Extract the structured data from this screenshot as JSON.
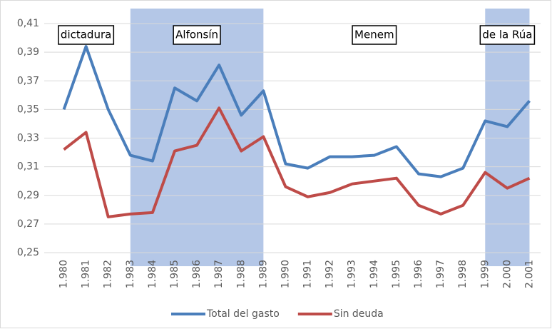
{
  "chart_data": {
    "type": "line",
    "categories": [
      "1.980",
      "1.981",
      "1.982",
      "1.983",
      "1.984",
      "1.985",
      "1.986",
      "1.987",
      "1.988",
      "1.989",
      "1.990",
      "1.991",
      "1.992",
      "1.993",
      "1.994",
      "1.995",
      "1.996",
      "1.997",
      "1.998",
      "1.999",
      "2.000",
      "2.001"
    ],
    "series": [
      {
        "name": "Total del gasto",
        "color": "#4a7ebb",
        "values": [
          0.35,
          0.394,
          0.35,
          0.318,
          0.314,
          0.365,
          0.356,
          0.381,
          0.346,
          0.363,
          0.312,
          0.309,
          0.317,
          0.317,
          0.318,
          0.324,
          0.305,
          0.303,
          0.309,
          0.342,
          0.338,
          0.356
        ]
      },
      {
        "name": "Sin deuda",
        "color": "#be4b48",
        "values": [
          0.322,
          0.334,
          0.275,
          0.277,
          0.278,
          0.321,
          0.325,
          0.351,
          0.321,
          0.331,
          0.296,
          0.289,
          0.292,
          0.298,
          0.3,
          0.302,
          0.283,
          0.277,
          0.283,
          0.306,
          0.295,
          0.302
        ]
      }
    ],
    "periods": [
      {
        "label": "dictadura",
        "start": "1.980",
        "end": "1.982",
        "shaded": false
      },
      {
        "label": "Alfonsín",
        "start": "1.983",
        "end": "1.989",
        "shaded": true
      },
      {
        "label": "Menem",
        "start": "1.990",
        "end": "1.998",
        "shaded": false
      },
      {
        "label": "de la Rúa",
        "start": "1.999",
        "end": "2.001",
        "shaded": true
      }
    ],
    "ylim": [
      0.25,
      0.41
    ],
    "yticks": [
      {
        "value": 0.25,
        "label": "0,25"
      },
      {
        "value": 0.27,
        "label": "0,27"
      },
      {
        "value": 0.29,
        "label": "0,29"
      },
      {
        "value": 0.31,
        "label": "0,31"
      },
      {
        "value": 0.33,
        "label": "0,33"
      },
      {
        "value": 0.35,
        "label": "0,35"
      },
      {
        "value": 0.37,
        "label": "0,37"
      },
      {
        "value": 0.39,
        "label": "0,39"
      },
      {
        "value": 0.41,
        "label": "0,41"
      }
    ],
    "grid": true,
    "legend": "bottom",
    "shade_color": "#b4c7e7"
  }
}
